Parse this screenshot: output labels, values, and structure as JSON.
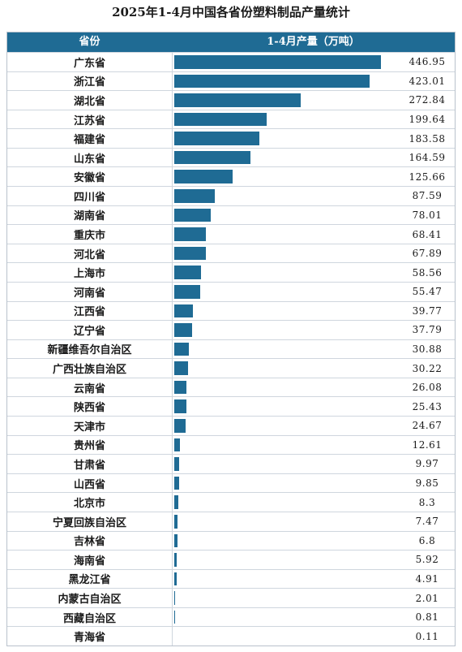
{
  "title": "2025年1-4月中国各省份塑料制品产量统计",
  "header": {
    "province_label": "省份",
    "value_label": "1-4月产量（万吨）"
  },
  "colors": {
    "header_bg": "#1f6b94",
    "bar": "#1f6b94"
  },
  "chart_data": {
    "type": "bar",
    "orientation": "horizontal",
    "title": "2025年1-4月中国各省份塑料制品产量统计",
    "xlabel": "",
    "ylabel": "",
    "categories": [
      "广东省",
      "浙江省",
      "湖北省",
      "江苏省",
      "福建省",
      "山东省",
      "安徽省",
      "四川省",
      "湖南省",
      "重庆市",
      "河北省",
      "上海市",
      "河南省",
      "江西省",
      "辽宁省",
      "新疆维吾尔自治区",
      "广西壮族自治区",
      "云南省",
      "陕西省",
      "天津市",
      "贵州省",
      "甘肃省",
      "山西省",
      "北京市",
      "宁夏回族自治区",
      "吉林省",
      "海南省",
      "黑龙江省",
      "内蒙古自治区",
      "西藏自治区",
      "青海省"
    ],
    "values": [
      446.95,
      423.01,
      272.84,
      199.64,
      183.58,
      164.59,
      125.66,
      87.59,
      78.01,
      68.41,
      67.89,
      58.56,
      55.47,
      39.77,
      37.79,
      30.88,
      30.22,
      26.08,
      25.43,
      24.67,
      12.61,
      9.97,
      9.85,
      8.3,
      7.47,
      6.8,
      5.92,
      4.91,
      2.01,
      0.81,
      0.11
    ],
    "value_labels": [
      "446.95",
      "423.01",
      "272.84",
      "199.64",
      "183.58",
      "164.59",
      "125.66",
      "87.59",
      "78.01",
      "68.41",
      "67.89",
      "58.56",
      "55.47",
      "39.77",
      "37.79",
      "30.88",
      "30.22",
      "26.08",
      "25.43",
      "24.67",
      "12.61",
      "9.97",
      "9.85",
      "8.3",
      "7.47",
      "6.8",
      "5.92",
      "4.91",
      "2.01",
      "0.81",
      "0.11"
    ],
    "xlim": [
      0,
      446.95
    ],
    "grid": false,
    "legend": false
  }
}
